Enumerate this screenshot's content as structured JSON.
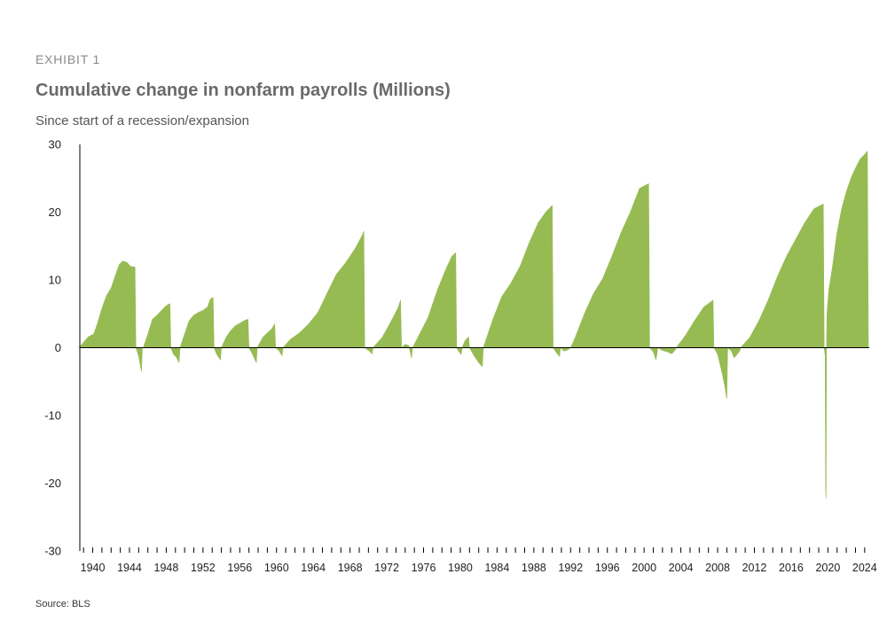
{
  "header": {
    "exhibit": "EXHIBIT 1",
    "title": "Cumulative change in nonfarm payrolls (Millions)",
    "subtitle": "Since start of a recession/expansion"
  },
  "footer": {
    "source": "Source: BLS"
  },
  "chart_data": {
    "type": "area",
    "title": "Cumulative change in nonfarm payrolls (Millions)",
    "subtitle": "Since start of a recession/expansion",
    "xlabel": "",
    "ylabel": "",
    "ylim": [
      -30,
      30
    ],
    "xlim": [
      1939,
      2025
    ],
    "yticks": [
      30,
      20,
      10,
      0,
      -10,
      -20,
      -30
    ],
    "xticks": [
      1940,
      1944,
      1948,
      1952,
      1956,
      1960,
      1964,
      1968,
      1972,
      1976,
      1980,
      1984,
      1988,
      1992,
      1996,
      2000,
      2004,
      2008,
      2012,
      2016,
      2020,
      2024
    ],
    "fill_color": "#97bb53",
    "axis_color": "#000000",
    "grid": false,
    "legend": "none",
    "series": [
      {
        "values": [
          [
            1939.0,
            0
          ],
          [
            1939.4,
            0.6
          ],
          [
            1940.0,
            1.6
          ],
          [
            1940.6,
            2.0
          ],
          [
            1941.0,
            3.5
          ],
          [
            1941.5,
            5.8
          ],
          [
            1942.0,
            7.7
          ],
          [
            1942.5,
            8.8
          ],
          [
            1943.0,
            10.8
          ],
          [
            1943.4,
            12.3
          ],
          [
            1943.8,
            12.8
          ],
          [
            1944.2,
            12.6
          ],
          [
            1944.6,
            12.0
          ],
          [
            1945.1,
            11.9
          ],
          [
            1945.2,
            0
          ],
          [
            1945.2,
            0
          ],
          [
            1945.5,
            -1.2
          ],
          [
            1945.8,
            -3.5
          ],
          [
            1945.9,
            0
          ],
          [
            1946.0,
            0
          ],
          [
            1946.5,
            2.0
          ],
          [
            1947.0,
            4.2
          ],
          [
            1947.5,
            4.8
          ],
          [
            1948.0,
            5.5
          ],
          [
            1948.5,
            6.2
          ],
          [
            1948.9,
            6.5
          ],
          [
            1949.0,
            0
          ],
          [
            1949.0,
            0
          ],
          [
            1949.3,
            -1.0
          ],
          [
            1949.6,
            -1.4
          ],
          [
            1949.9,
            -2.2
          ],
          [
            1950.0,
            0
          ],
          [
            1950.0,
            0
          ],
          [
            1950.5,
            2.0
          ],
          [
            1951.0,
            4.0
          ],
          [
            1951.5,
            4.8
          ],
          [
            1952.0,
            5.2
          ],
          [
            1952.5,
            5.5
          ],
          [
            1953.0,
            6.0
          ],
          [
            1953.3,
            7.2
          ],
          [
            1953.6,
            7.4
          ],
          [
            1953.7,
            0
          ],
          [
            1953.7,
            0
          ],
          [
            1954.0,
            -1.0
          ],
          [
            1954.4,
            -1.8
          ],
          [
            1954.5,
            0
          ],
          [
            1954.5,
            0
          ],
          [
            1955.0,
            1.5
          ],
          [
            1955.5,
            2.5
          ],
          [
            1956.0,
            3.2
          ],
          [
            1956.5,
            3.6
          ],
          [
            1957.0,
            4.0
          ],
          [
            1957.4,
            4.2
          ],
          [
            1957.5,
            0
          ],
          [
            1957.5,
            0
          ],
          [
            1957.9,
            -1.0
          ],
          [
            1958.3,
            -2.2
          ],
          [
            1958.4,
            0
          ],
          [
            1958.4,
            0
          ],
          [
            1959.0,
            1.5
          ],
          [
            1959.5,
            2.2
          ],
          [
            1960.0,
            2.8
          ],
          [
            1960.3,
            3.5
          ],
          [
            1960.4,
            0
          ],
          [
            1960.4,
            0
          ],
          [
            1960.8,
            -0.5
          ],
          [
            1961.1,
            -1.2
          ],
          [
            1961.2,
            0
          ],
          [
            1961.2,
            0
          ],
          [
            1962.0,
            1.2
          ],
          [
            1963.0,
            2.2
          ],
          [
            1964.0,
            3.5
          ],
          [
            1965.0,
            5.2
          ],
          [
            1966.0,
            8.0
          ],
          [
            1967.0,
            10.8
          ],
          [
            1968.0,
            12.5
          ],
          [
            1969.0,
            14.5
          ],
          [
            1969.8,
            16.5
          ],
          [
            1970.0,
            17.2
          ],
          [
            1970.1,
            0
          ],
          [
            1970.1,
            0
          ],
          [
            1970.6,
            -0.5
          ],
          [
            1970.9,
            -0.9
          ],
          [
            1971.0,
            0
          ],
          [
            1971.0,
            0
          ],
          [
            1972.0,
            1.5
          ],
          [
            1973.0,
            4.0
          ],
          [
            1973.7,
            5.8
          ],
          [
            1974.0,
            7.0
          ],
          [
            1974.1,
            0
          ],
          [
            1974.1,
            0
          ],
          [
            1974.5,
            0.5
          ],
          [
            1974.9,
            0.3
          ],
          [
            1975.2,
            -1.5
          ],
          [
            1975.3,
            0
          ],
          [
            1975.3,
            0
          ],
          [
            1976.0,
            1.8
          ],
          [
            1977.0,
            4.5
          ],
          [
            1978.0,
            8.5
          ],
          [
            1979.0,
            11.8
          ],
          [
            1979.6,
            13.5
          ],
          [
            1980.0,
            14.0
          ],
          [
            1980.1,
            0
          ],
          [
            1980.1,
            0
          ],
          [
            1980.3,
            -0.5
          ],
          [
            1980.6,
            -1.0
          ],
          [
            1980.7,
            0
          ],
          [
            1980.7,
            0
          ],
          [
            1981.0,
            1.0
          ],
          [
            1981.4,
            1.6
          ],
          [
            1981.5,
            0
          ],
          [
            1981.5,
            0
          ],
          [
            1982.0,
            -1.2
          ],
          [
            1982.5,
            -2.2
          ],
          [
            1982.9,
            -2.8
          ],
          [
            1983.0,
            0
          ],
          [
            1983.0,
            0
          ],
          [
            1984.0,
            4.0
          ],
          [
            1985.0,
            7.5
          ],
          [
            1986.0,
            9.5
          ],
          [
            1987.0,
            12.0
          ],
          [
            1988.0,
            15.5
          ],
          [
            1989.0,
            18.5
          ],
          [
            1989.8,
            20.0
          ],
          [
            1990.5,
            21.0
          ],
          [
            1990.6,
            0
          ],
          [
            1990.6,
            0
          ],
          [
            1991.0,
            -0.8
          ],
          [
            1991.3,
            -1.3
          ],
          [
            1991.4,
            0
          ],
          [
            1991.4,
            0
          ],
          [
            1991.8,
            -0.5
          ],
          [
            1992.2,
            -0.3
          ],
          [
            1992.5,
            0
          ],
          [
            1992.5,
            0
          ],
          [
            1993.0,
            1.5
          ],
          [
            1994.0,
            5.0
          ],
          [
            1995.0,
            8.0
          ],
          [
            1996.0,
            10.2
          ],
          [
            1997.0,
            13.5
          ],
          [
            1998.0,
            17.0
          ],
          [
            1999.0,
            20.0
          ],
          [
            2000.0,
            23.5
          ],
          [
            2001.0,
            24.2
          ],
          [
            2001.1,
            0
          ],
          [
            2001.1,
            0
          ],
          [
            2001.5,
            -0.6
          ],
          [
            2001.8,
            -1.8
          ],
          [
            2002.0,
            0
          ],
          [
            2002.0,
            0
          ],
          [
            2002.5,
            -0.4
          ],
          [
            2003.0,
            -0.6
          ],
          [
            2003.5,
            -0.9
          ],
          [
            2003.9,
            -0.3
          ],
          [
            2004.0,
            0
          ],
          [
            2004.0,
            0
          ],
          [
            2005.0,
            1.8
          ],
          [
            2006.0,
            4.0
          ],
          [
            2007.0,
            6.0
          ],
          [
            2007.8,
            6.8
          ],
          [
            2008.0,
            7.0
          ],
          [
            2008.1,
            0
          ],
          [
            2008.1,
            0
          ],
          [
            2008.5,
            -1.0
          ],
          [
            2009.0,
            -3.8
          ],
          [
            2009.3,
            -5.8
          ],
          [
            2009.5,
            -7.5
          ],
          [
            2009.6,
            0
          ],
          [
            2009.6,
            0
          ],
          [
            2010.0,
            -0.5
          ],
          [
            2010.3,
            -1.5
          ],
          [
            2010.6,
            -1.0
          ],
          [
            2010.9,
            -0.5
          ],
          [
            2011.0,
            0
          ],
          [
            2011.0,
            0
          ],
          [
            2012.0,
            1.5
          ],
          [
            2013.0,
            4.0
          ],
          [
            2014.0,
            7.0
          ],
          [
            2015.0,
            10.5
          ],
          [
            2016.0,
            13.5
          ],
          [
            2017.0,
            16.0
          ],
          [
            2018.0,
            18.5
          ],
          [
            2019.0,
            20.5
          ],
          [
            2020.0,
            21.2
          ],
          [
            2020.1,
            0
          ],
          [
            2020.1,
            0
          ],
          [
            2020.2,
            -1.2
          ],
          [
            2020.25,
            -21.0
          ],
          [
            2020.3,
            -22.2
          ],
          [
            2020.35,
            0
          ],
          [
            2020.35,
            0
          ],
          [
            2020.4,
            5.0
          ],
          [
            2020.6,
            8.5
          ],
          [
            2021.0,
            12.0
          ],
          [
            2021.5,
            17.0
          ],
          [
            2022.0,
            20.5
          ],
          [
            2022.5,
            23.0
          ],
          [
            2023.0,
            25.0
          ],
          [
            2023.5,
            26.5
          ],
          [
            2024.0,
            27.8
          ],
          [
            2024.5,
            28.5
          ],
          [
            2024.8,
            29.0
          ],
          [
            2024.9,
            0
          ]
        ]
      }
    ]
  }
}
